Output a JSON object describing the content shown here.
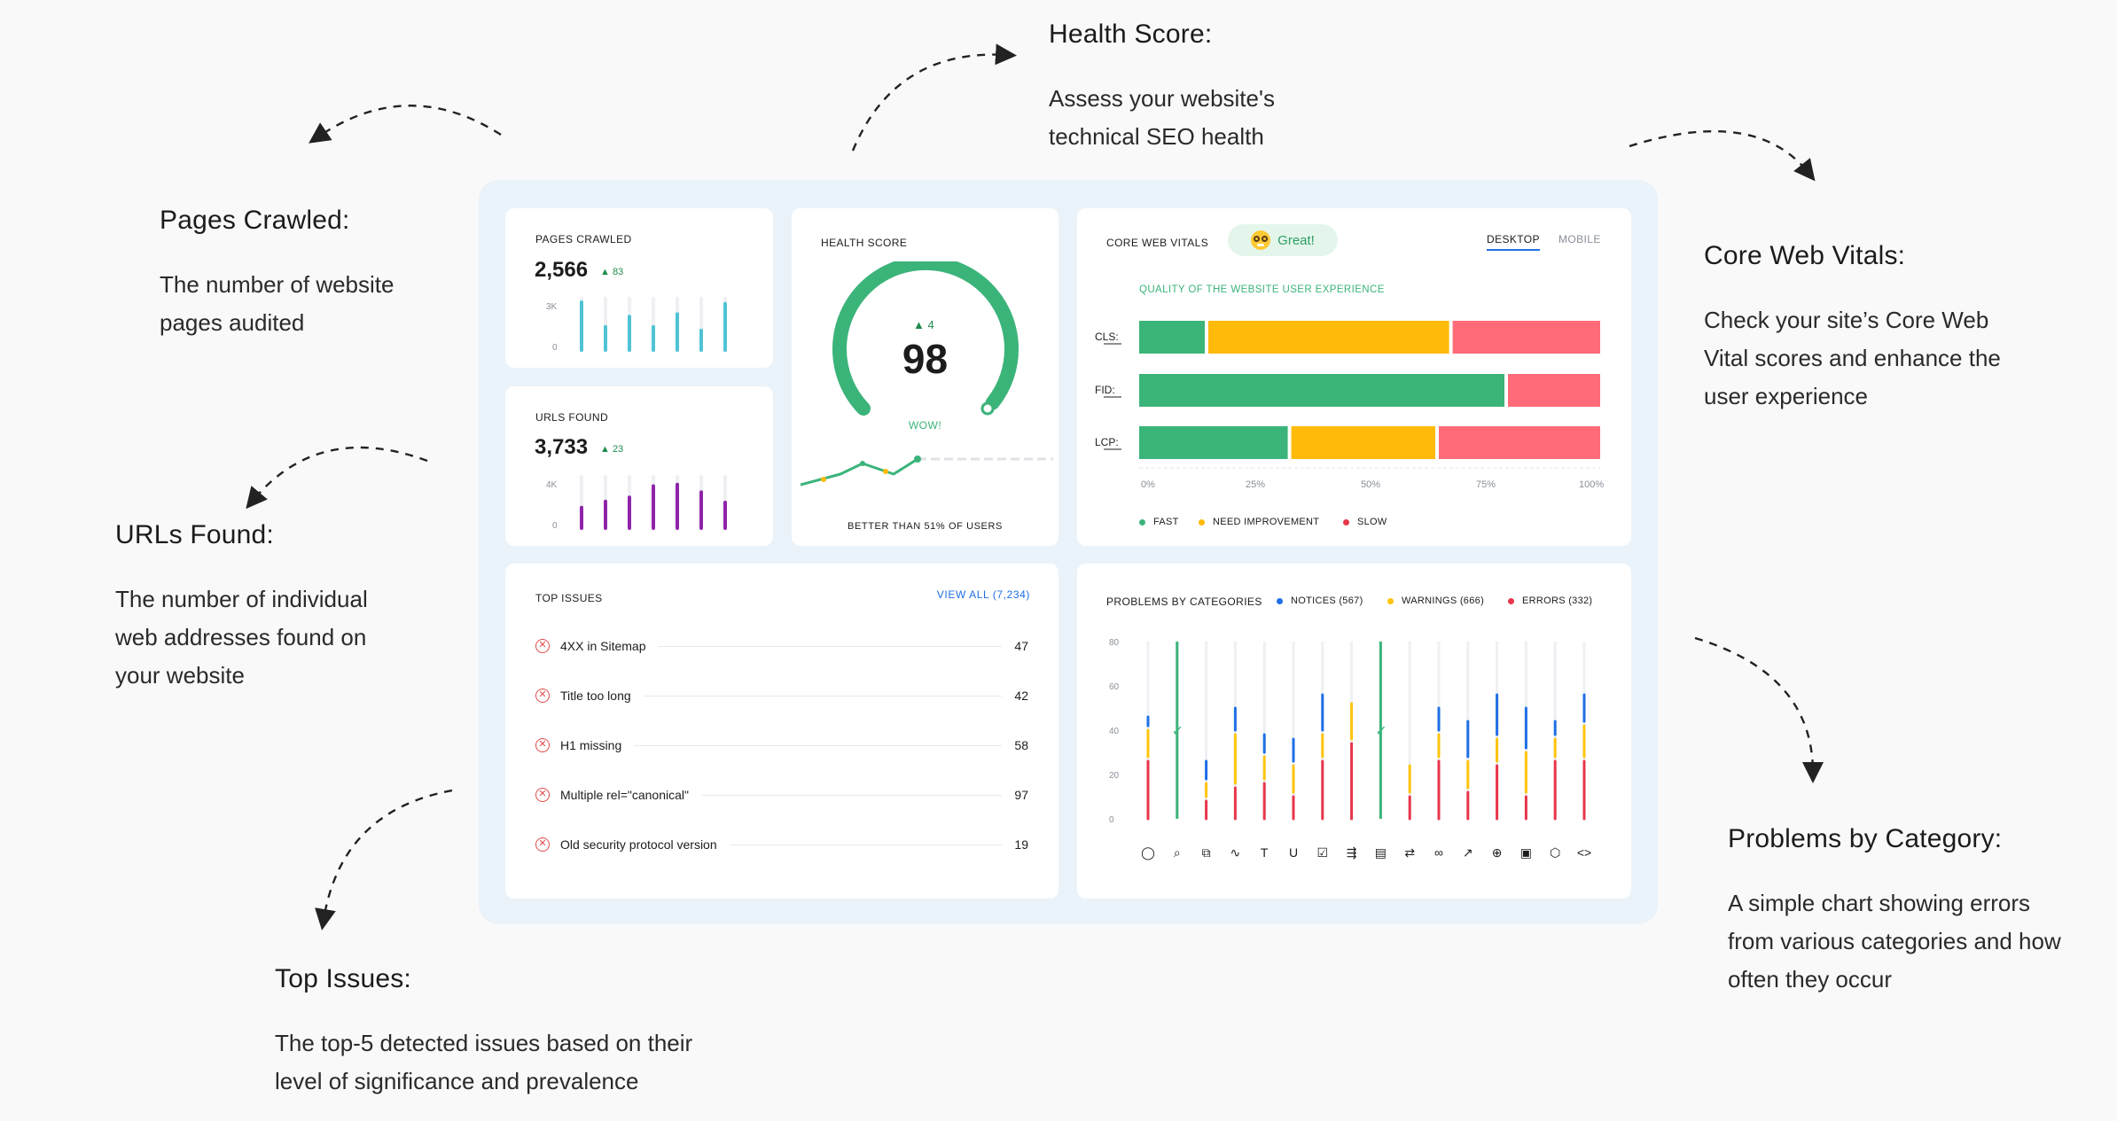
{
  "annotations": {
    "pages_crawled": {
      "title": "Pages Crawled:",
      "desc": "The number of website pages audited"
    },
    "health_score": {
      "title": "Health Score:",
      "desc": "Assess your website's technical SEO health"
    },
    "core_web_vitals": {
      "title": "Core Web Vitals:",
      "desc": "Check your site’s Core Web Vital scores and enhance the user experience"
    },
    "urls_found": {
      "title": "URLs Found:",
      "desc": "The number of individual web addresses found on your website"
    },
    "top_issues": {
      "title": "Top Issues:",
      "desc": "The top-5 detected issues based on their level of significance and prevalence"
    },
    "problems": {
      "title": "Problems by Category:",
      "desc": "A simple chart showing errors from various categories and how often they occur"
    }
  },
  "pages_crawled": {
    "label": "PAGES CRAWLED",
    "value": "2,566",
    "delta": "▲ 83",
    "axis_top": "3K",
    "axis_bottom": "0",
    "bars": [
      0.93,
      0.45,
      0.65,
      0.45,
      0.7,
      0.38,
      0.9
    ],
    "color": "#4fc3d4"
  },
  "urls_found": {
    "label": "URLS FOUND",
    "value": "3,733",
    "delta": "▲ 23",
    "axis_top": "4K",
    "axis_bottom": "0",
    "bars": [
      0.4,
      0.52,
      0.6,
      0.82,
      0.85,
      0.7,
      0.5
    ],
    "color": "#8e24aa"
  },
  "health_score": {
    "label": "HEALTH SCORE",
    "score": "98",
    "delta": "▲ 4",
    "verdict": "WOW!",
    "footer": "BETTER THAN 51% OF USERS",
    "fill": 0.98
  },
  "core_web_vitals": {
    "label": "CORE WEB VITALS",
    "badge": "Great!",
    "badge_icon": "nerd-face-emoji",
    "tabs": [
      "DESKTOP",
      "MOBILE"
    ],
    "active_tab": "DESKTOP",
    "subtitle": "QUALITY OF THE WEBSITE USER EXPERIENCE",
    "colors": {
      "fast": "#3bb47a",
      "need": "#ffba0a",
      "slow": "#ff6b78"
    },
    "legend": [
      "FAST",
      "NEED IMPROVEMENT",
      "SLOW"
    ],
    "ticks": [
      "0%",
      "25%",
      "50%",
      "75%",
      "100%"
    ]
  },
  "chart_data": [
    {
      "type": "bar",
      "subtitle": "QUALITY OF THE WEBSITE USER EXPERIENCE",
      "categories": [
        "CLS:",
        "FID:",
        "LCP:"
      ],
      "series": [
        {
          "name": "FAST",
          "values": [
            15,
            80,
            33
          ]
        },
        {
          "name": "NEED IMPROVEMENT",
          "values": [
            53,
            0,
            32
          ]
        },
        {
          "name": "SLOW",
          "values": [
            32,
            20,
            35
          ]
        }
      ],
      "stacked": true,
      "orientation": "horizontal",
      "xlim": [
        0,
        100
      ],
      "xticks": [
        "0%",
        "25%",
        "50%",
        "75%",
        "100%"
      ]
    },
    {
      "type": "bar",
      "title": "PROBLEMS BY CATEGORIES",
      "yticks": [
        "80",
        "60",
        "40",
        "20",
        "0"
      ],
      "ylim": [
        0,
        80
      ],
      "categories": [
        "security",
        "search",
        "duplicate",
        "performance",
        "text",
        "underline",
        "checklist",
        "announce",
        "document",
        "redirect",
        "link",
        "external",
        "globe",
        "image",
        "bug",
        "code"
      ],
      "series": [
        {
          "name": "NOTICES (567)",
          "values": [
            6,
            0,
            10,
            12,
            10,
            12,
            18,
            0,
            0,
            0,
            12,
            18,
            20,
            20,
            8,
            14
          ]
        },
        {
          "name": "WARNINGS (666)",
          "values": [
            14,
            0,
            8,
            24,
            12,
            14,
            12,
            18,
            18,
            14,
            12,
            14,
            12,
            20,
            10,
            16
          ]
        },
        {
          "name": "ERRORS (332)",
          "values": [
            26,
            0,
            8,
            14,
            16,
            10,
            26,
            34,
            26,
            10,
            26,
            12,
            24,
            10,
            26,
            26
          ]
        }
      ],
      "checked": [
        1,
        8
      ],
      "stacked": true
    }
  ],
  "top_issues": {
    "label": "TOP ISSUES",
    "view_all": "VIEW ALL (7,234)",
    "items": [
      {
        "name": "4XX in Sitemap",
        "count": "47"
      },
      {
        "name": "Title too long",
        "count": "42"
      },
      {
        "name": "H1 missing",
        "count": "58"
      },
      {
        "name": "Multiple rel=\"canonical\"",
        "count": "97"
      },
      {
        "name": "Old security protocol version",
        "count": "19"
      }
    ]
  },
  "problems": {
    "label": "PROBLEMS BY CATEGORIES",
    "legend": [
      {
        "name": "NOTICES (567)",
        "color": "#1f6fe5"
      },
      {
        "name": "WARNINGS (666)",
        "color": "#ffc40c"
      },
      {
        "name": "ERRORS (332)",
        "color": "#e8364b"
      }
    ],
    "icons": [
      "◯",
      "⌕",
      "⧉",
      "∿",
      "T",
      "U",
      "☑",
      "⇶",
      "▤",
      "⇄",
      "∞",
      "↗",
      "⊕",
      "▣",
      "⬡",
      "<>"
    ]
  }
}
